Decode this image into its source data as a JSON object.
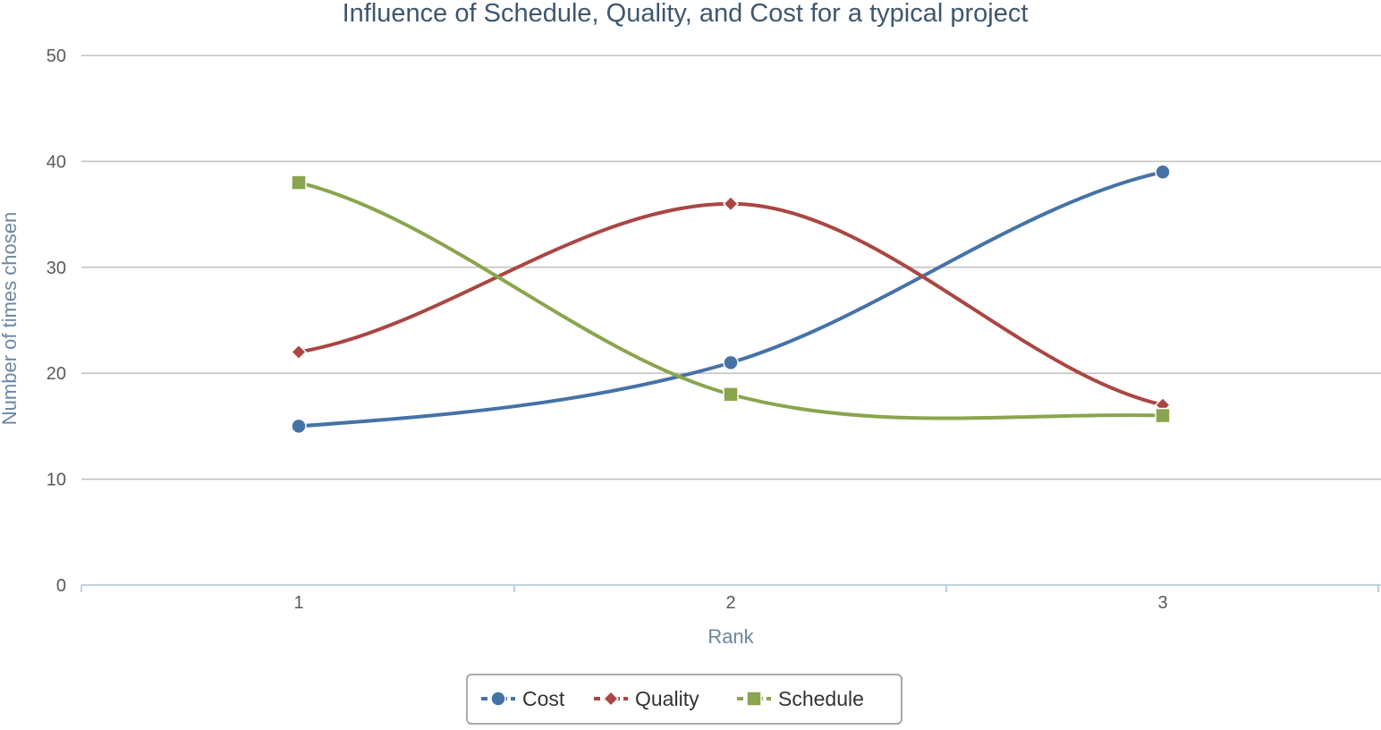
{
  "chart_data": {
    "type": "line",
    "title": "Influence of Schedule, Quality, and Cost for a typical project",
    "xlabel": "Rank",
    "ylabel": "Number of times chosen",
    "categories": [
      "1",
      "2",
      "3"
    ],
    "yticks": [
      "0",
      "10",
      "20",
      "30",
      "40",
      "50"
    ],
    "ylim": [
      0,
      50
    ],
    "grid": true,
    "smooth": true,
    "legend_position": "bottom",
    "series": [
      {
        "name": "Cost",
        "values": [
          15,
          21,
          39
        ],
        "color": "#4572a7",
        "marker": "circle"
      },
      {
        "name": "Quality",
        "values": [
          22,
          36,
          17
        ],
        "color": "#aa4643",
        "marker": "diamond"
      },
      {
        "name": "Schedule",
        "values": [
          38,
          18,
          16
        ],
        "color": "#89a54e",
        "marker": "square"
      }
    ]
  },
  "colors": {
    "title": "#3e576f",
    "axis_title": "#6d869f",
    "gridline": "#c0c0c0",
    "axis_line": "#c0d0e0",
    "legend_border": "#909090"
  }
}
